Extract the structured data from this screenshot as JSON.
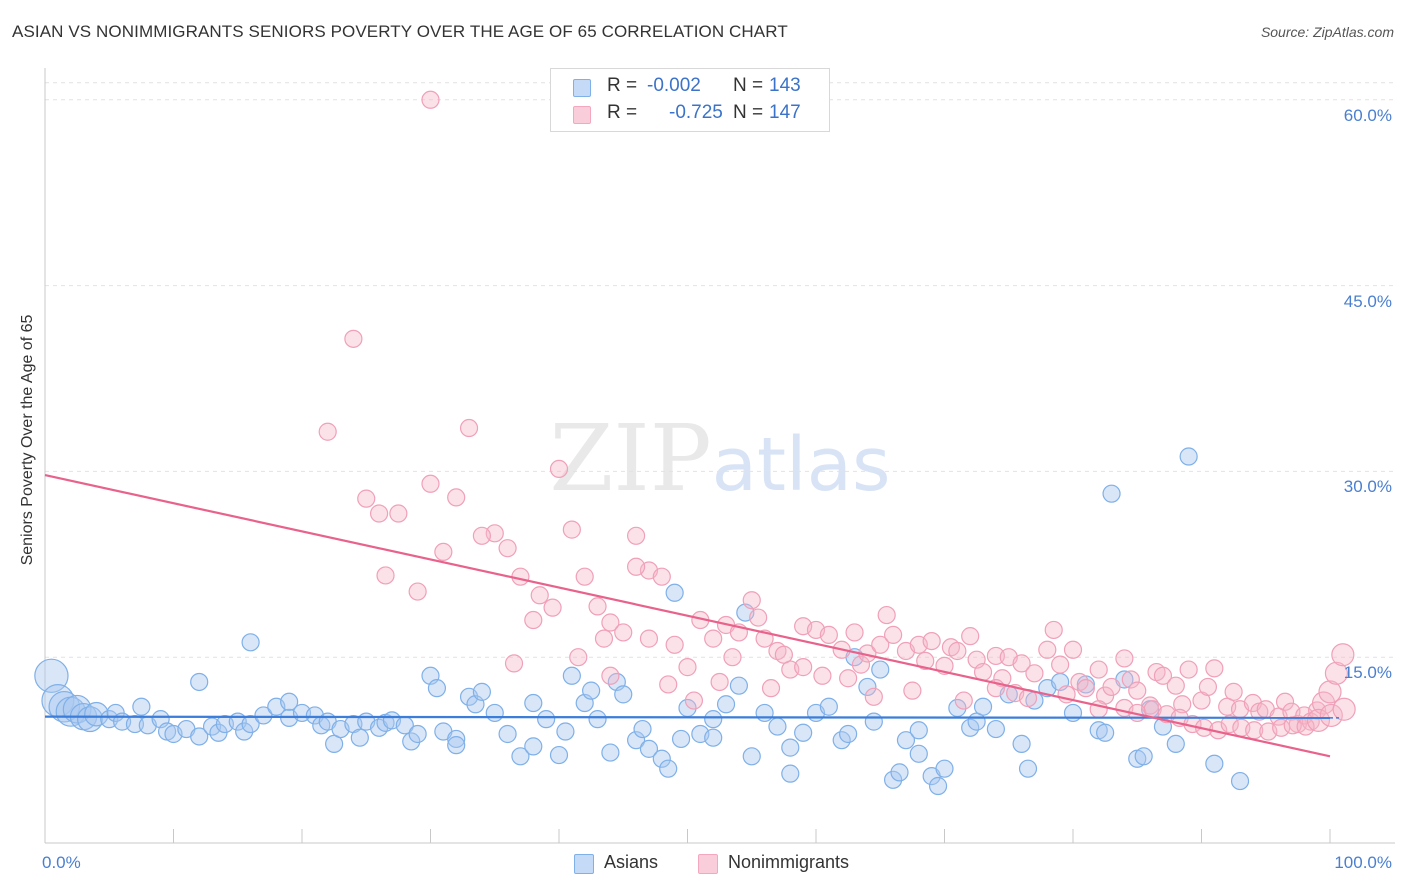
{
  "chart_data": {
    "type": "scatter",
    "title": "ASIAN VS NONIMMIGRANTS SENIORS POVERTY OVER THE AGE OF 65 CORRELATION CHART",
    "source": "Source: ZipAtlas.com",
    "ylabel": "Seniors Poverty Over the Age of 65",
    "xlabel": "",
    "xlim": [
      0,
      100
    ],
    "ylim": [
      0,
      60
    ],
    "x_tick_labels": [
      "0.0%",
      "100.0%"
    ],
    "y_tick_labels": [
      "15.0%",
      "30.0%",
      "45.0%",
      "60.0%"
    ],
    "y_tick_values": [
      15,
      30,
      45,
      60
    ],
    "grid": "horizontal dashed",
    "watermark": "ZIPatlas",
    "legend_top": [
      {
        "r_label": "R =",
        "r_value": "-0.002",
        "n_label": "N =",
        "n_value": "143",
        "color": "#a8c8f0"
      },
      {
        "r_label": "R =",
        "r_value": "-0.725",
        "n_label": "N =",
        "n_value": "147",
        "color": "#f4b6c8"
      }
    ],
    "series": [
      {
        "name": "Asians",
        "color": "#7fb0e8",
        "trend": {
          "x": [
            0,
            100
          ],
          "y": [
            10.2,
            10.1
          ],
          "color": "#3b7dd8"
        },
        "points": [
          [
            0.5,
            13.5
          ],
          [
            1,
            11.5
          ],
          [
            1.5,
            11
          ],
          [
            2,
            10.6
          ],
          [
            2.5,
            10.8
          ],
          [
            3,
            10.2
          ],
          [
            3.5,
            10
          ],
          [
            4,
            10.4
          ],
          [
            5,
            10
          ],
          [
            5.5,
            10.5
          ],
          [
            6,
            9.8
          ],
          [
            7,
            9.6
          ],
          [
            7.5,
            11
          ],
          [
            8,
            9.5
          ],
          [
            9,
            10
          ],
          [
            9.5,
            9
          ],
          [
            10,
            8.8
          ],
          [
            11,
            9.2
          ],
          [
            12,
            8.6
          ],
          [
            12,
            13
          ],
          [
            13,
            9.4
          ],
          [
            13.5,
            8.9
          ],
          [
            14,
            9.6
          ],
          [
            15,
            9.8
          ],
          [
            15.5,
            9
          ],
          [
            16,
            9.6
          ],
          [
            16,
            16.2
          ],
          [
            17,
            10.3
          ],
          [
            18,
            11
          ],
          [
            19,
            10.1
          ],
          [
            19,
            11.4
          ],
          [
            20,
            10.5
          ],
          [
            21,
            10.3
          ],
          [
            21.5,
            9.5
          ],
          [
            22,
            9.8
          ],
          [
            22.5,
            8
          ],
          [
            23,
            9.2
          ],
          [
            24,
            9.6
          ],
          [
            24.5,
            8.5
          ],
          [
            25,
            9.8
          ],
          [
            26,
            9.3
          ],
          [
            26.5,
            9.7
          ],
          [
            27,
            9.9
          ],
          [
            28,
            9.5
          ],
          [
            28.5,
            8.2
          ],
          [
            29,
            8.8
          ],
          [
            30,
            13.5
          ],
          [
            30.5,
            12.5
          ],
          [
            31,
            9
          ],
          [
            32,
            8.4
          ],
          [
            32,
            7.9
          ],
          [
            33,
            11.8
          ],
          [
            33.5,
            11.2
          ],
          [
            34,
            12.2
          ],
          [
            35,
            10.5
          ],
          [
            36,
            8.8
          ],
          [
            37,
            7
          ],
          [
            38,
            7.8
          ],
          [
            38,
            11.3
          ],
          [
            39,
            10
          ],
          [
            40,
            7.1
          ],
          [
            40.5,
            9
          ],
          [
            41,
            13.5
          ],
          [
            42,
            11.3
          ],
          [
            42.5,
            12.3
          ],
          [
            43,
            10
          ],
          [
            44,
            7.3
          ],
          [
            44.5,
            13
          ],
          [
            45,
            12
          ],
          [
            46,
            8.3
          ],
          [
            46.5,
            9.2
          ],
          [
            47,
            7.6
          ],
          [
            48,
            6.8
          ],
          [
            48.5,
            6
          ],
          [
            49,
            20.2
          ],
          [
            49.5,
            8.4
          ],
          [
            50,
            10.9
          ],
          [
            51,
            8.8
          ],
          [
            52,
            8.5
          ],
          [
            52,
            10
          ],
          [
            53,
            11.2
          ],
          [
            54,
            12.7
          ],
          [
            54.5,
            18.6
          ],
          [
            55,
            7
          ],
          [
            56,
            10.5
          ],
          [
            57,
            9.4
          ],
          [
            58,
            7.7
          ],
          [
            58,
            5.6
          ],
          [
            59,
            8.9
          ],
          [
            60,
            10.5
          ],
          [
            61,
            11
          ],
          [
            62,
            8.3
          ],
          [
            62.5,
            8.8
          ],
          [
            63,
            15
          ],
          [
            64,
            12.6
          ],
          [
            64.5,
            9.8
          ],
          [
            65,
            14
          ],
          [
            66,
            5.1
          ],
          [
            66.5,
            5.7
          ],
          [
            67,
            8.3
          ],
          [
            68,
            7.2
          ],
          [
            68,
            9.1
          ],
          [
            69,
            5.4
          ],
          [
            69.5,
            4.6
          ],
          [
            70,
            6
          ],
          [
            71,
            10.9
          ],
          [
            72,
            9.3
          ],
          [
            72.5,
            9.8
          ],
          [
            73,
            11
          ],
          [
            74,
            9.2
          ],
          [
            75,
            12
          ],
          [
            76,
            8
          ],
          [
            76.5,
            6
          ],
          [
            77,
            11.5
          ],
          [
            78,
            12.5
          ],
          [
            79,
            13
          ],
          [
            80,
            10.5
          ],
          [
            81,
            12.8
          ],
          [
            82,
            9.1
          ],
          [
            82.5,
            8.9
          ],
          [
            83,
            28.2
          ],
          [
            84,
            13.2
          ],
          [
            85,
            6.8
          ],
          [
            85.5,
            7
          ],
          [
            86,
            10.8
          ],
          [
            87,
            9.4
          ],
          [
            88,
            8
          ],
          [
            89,
            31.2
          ],
          [
            91,
            6.4
          ],
          [
            93,
            5
          ]
        ]
      },
      {
        "name": "Nonimmigrants",
        "color": "#f4a8c0",
        "trend": {
          "x": [
            0,
            100
          ],
          "y": [
            29.7,
            7
          ]
        },
        "points": [
          [
            30,
            60
          ],
          [
            24,
            40.7
          ],
          [
            22,
            33.2
          ],
          [
            30,
            29
          ],
          [
            32,
            27.9
          ],
          [
            25,
            27.8
          ],
          [
            26,
            26.6
          ],
          [
            27.5,
            26.6
          ],
          [
            35,
            25
          ],
          [
            36,
            23.8
          ],
          [
            37,
            21.5
          ],
          [
            38,
            18
          ],
          [
            40,
            30.2
          ],
          [
            41,
            25.3
          ],
          [
            42,
            21.5
          ],
          [
            43,
            19.1
          ],
          [
            44,
            17.8
          ],
          [
            45,
            17
          ],
          [
            46,
            24.8
          ],
          [
            47,
            22
          ],
          [
            48,
            21.5
          ],
          [
            49,
            16
          ],
          [
            50,
            14.2
          ],
          [
            51,
            18
          ],
          [
            52,
            16.5
          ],
          [
            53,
            17.6
          ],
          [
            54,
            17
          ],
          [
            55,
            19.6
          ],
          [
            55.5,
            18.2
          ],
          [
            56,
            16.5
          ],
          [
            57,
            15.5
          ],
          [
            58,
            14
          ],
          [
            59,
            17.5
          ],
          [
            60,
            17.2
          ],
          [
            61,
            16.8
          ],
          [
            62,
            15.6
          ],
          [
            62.5,
            13.3
          ],
          [
            63,
            17
          ],
          [
            63.5,
            14.4
          ],
          [
            64,
            15.3
          ],
          [
            65,
            16
          ],
          [
            65.5,
            18.4
          ],
          [
            66,
            16.8
          ],
          [
            67,
            15.5
          ],
          [
            68,
            16
          ],
          [
            68.5,
            14.7
          ],
          [
            69,
            16.3
          ],
          [
            70,
            14.3
          ],
          [
            70.5,
            15.8
          ],
          [
            71,
            15.5
          ],
          [
            72,
            16.7
          ],
          [
            72.5,
            14.8
          ],
          [
            73,
            13.8
          ],
          [
            74,
            15.1
          ],
          [
            74.5,
            13.3
          ],
          [
            75,
            15
          ],
          [
            75.5,
            12.1
          ],
          [
            76,
            14.5
          ],
          [
            77,
            13.7
          ],
          [
            78,
            15.6
          ],
          [
            78.5,
            17.2
          ],
          [
            79,
            14.4
          ],
          [
            80,
            15.6
          ],
          [
            80.5,
            13
          ],
          [
            81,
            12.5
          ],
          [
            82,
            14
          ],
          [
            82.5,
            11.9
          ],
          [
            83,
            12.6
          ],
          [
            84,
            14.9
          ],
          [
            84.5,
            13.2
          ],
          [
            85,
            12.3
          ],
          [
            86,
            11.1
          ],
          [
            86.5,
            13.8
          ],
          [
            87,
            13.5
          ],
          [
            88,
            12.7
          ],
          [
            88.5,
            11.2
          ],
          [
            89,
            14
          ],
          [
            90,
            11.5
          ],
          [
            90.5,
            12.6
          ],
          [
            91,
            14.1
          ],
          [
            92,
            11
          ],
          [
            92.5,
            12.2
          ],
          [
            93,
            10.8
          ],
          [
            94,
            11.3
          ],
          [
            94.5,
            10.6
          ],
          [
            95,
            10.8
          ],
          [
            96,
            10.2
          ],
          [
            96.5,
            11.4
          ],
          [
            97,
            10.6
          ],
          [
            97.5,
            9.6
          ],
          [
            98,
            10.3
          ],
          [
            98.5,
            9.8
          ],
          [
            99,
            10.7
          ],
          [
            99.5,
            11.3
          ],
          [
            100,
            12.2
          ],
          [
            100.5,
            13.7
          ],
          [
            101,
            15.2
          ],
          [
            36.5,
            14.5
          ],
          [
            39.5,
            19
          ],
          [
            43.5,
            16.5
          ],
          [
            46,
            22.3
          ],
          [
            53.5,
            15
          ],
          [
            57.5,
            15.2
          ],
          [
            60.5,
            13.5
          ],
          [
            64.5,
            11.8
          ],
          [
            67.5,
            12.3
          ],
          [
            71.5,
            11.5
          ],
          [
            74,
            12.5
          ],
          [
            76.5,
            11.7
          ],
          [
            79.5,
            12
          ],
          [
            82,
            10.8
          ],
          [
            84,
            10.9
          ],
          [
            85,
            10.5
          ],
          [
            86.2,
            10.8
          ],
          [
            87.3,
            10.4
          ],
          [
            88.3,
            10.1
          ],
          [
            89.3,
            9.6
          ],
          [
            90.2,
            9.3
          ],
          [
            91.3,
            9.1
          ],
          [
            92.2,
            9.6
          ],
          [
            93.1,
            9.3
          ],
          [
            94.1,
            9.1
          ],
          [
            95.2,
            9
          ],
          [
            96.2,
            9.3
          ],
          [
            97.1,
            9.5
          ],
          [
            98.1,
            9.4
          ],
          [
            99.1,
            9.9
          ],
          [
            100.1,
            10.3
          ],
          [
            101.1,
            10.8
          ],
          [
            34,
            24.8
          ],
          [
            33,
            33.5
          ],
          [
            26.5,
            21.6
          ],
          [
            29,
            20.3
          ],
          [
            31,
            23.5
          ],
          [
            38.5,
            20
          ],
          [
            41.5,
            15
          ],
          [
            44,
            13.5
          ],
          [
            47,
            16.5
          ],
          [
            48.5,
            12.8
          ],
          [
            50.5,
            11.5
          ],
          [
            52.5,
            13
          ],
          [
            56.5,
            12.5
          ],
          [
            59,
            14.2
          ]
        ]
      }
    ]
  }
}
